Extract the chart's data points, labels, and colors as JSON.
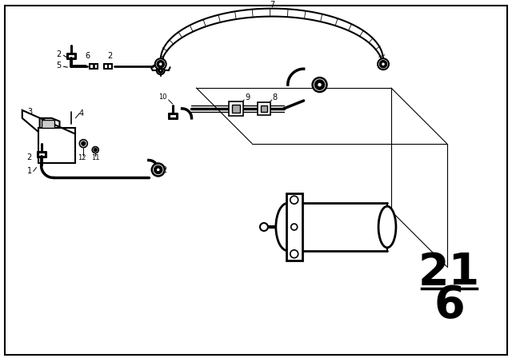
{
  "background_color": "#ffffff",
  "line_color": "#000000",
  "fig_width": 6.4,
  "fig_height": 4.48,
  "dpi": 100,
  "section_top": "21",
  "section_bot": "6"
}
